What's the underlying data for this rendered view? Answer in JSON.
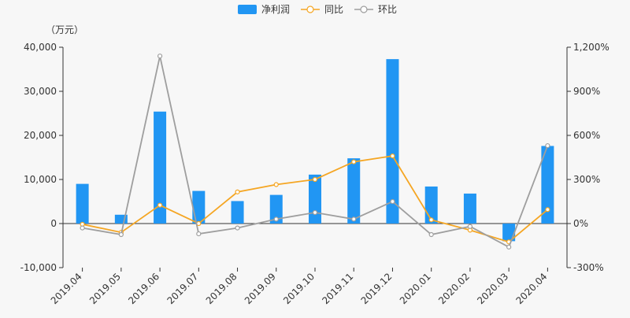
{
  "chart_data": {
    "type": "bar",
    "unit": "（万元）",
    "categories": [
      "2019.04",
      "2019.05",
      "2019.06",
      "2019.07",
      "2019.08",
      "2019.09",
      "2019.10",
      "2019.11",
      "2019.12",
      "2020.01",
      "2020.02",
      "2020.03",
      "2020.04"
    ],
    "left_axis": {
      "ylim": [
        -10000,
        40000
      ],
      "ticks": [
        -10000,
        0,
        10000,
        20000,
        30000,
        40000
      ],
      "tick_labels": [
        "-10,000",
        "0",
        "10,000",
        "20,000",
        "30,000",
        "40,000"
      ]
    },
    "right_axis": {
      "ylim": [
        -300,
        1200
      ],
      "ticks": [
        -300,
        0,
        300,
        600,
        900,
        1200
      ],
      "tick_labels": [
        "-300%",
        "0%",
        "300%",
        "600%",
        "900%",
        "1,200%"
      ]
    },
    "series": [
      {
        "name": "净利润",
        "kind": "bar",
        "axis": "left",
        "color": "#2196f3",
        "values": [
          9000,
          2000,
          25400,
          7400,
          5100,
          6500,
          11100,
          14800,
          37300,
          8400,
          6800,
          -4000,
          17600
        ]
      },
      {
        "name": "同比",
        "kind": "line",
        "axis": "right",
        "color": "#f5a623",
        "values": [
          -5,
          -60,
          125,
          0,
          215,
          265,
          300,
          420,
          460,
          25,
          -45,
          -125,
          95
        ]
      },
      {
        "name": "环比",
        "kind": "line",
        "axis": "right",
        "color": "#9e9e9e",
        "values": [
          -30,
          -75,
          1140,
          -70,
          -30,
          30,
          75,
          30,
          150,
          -75,
          -20,
          -160,
          530
        ]
      }
    ],
    "legend": {
      "position": "top-center"
    },
    "grid": false
  }
}
